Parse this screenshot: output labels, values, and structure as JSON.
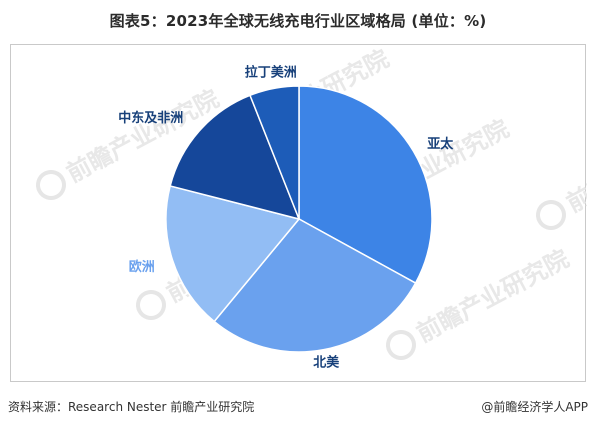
{
  "title": "图表5：2023年全球无线充电行业区域格局 (单位：%)",
  "chart_data": {
    "type": "pie",
    "title": "图表5：2023年全球无线充电行业区域格局 (单位：%)",
    "labels": [
      "亚太",
      "北美",
      "欧洲",
      "中东及非洲",
      "拉丁美洲"
    ],
    "values": [
      33,
      28,
      18,
      15,
      6
    ],
    "colors": [
      "#3d84e6",
      "#6aa1ee",
      "#92bdf4",
      "#15479a",
      "#1d5cb8"
    ],
    "label_colors": [
      "#17407a",
      "#17407a",
      "#6aa1ee",
      "#17407a",
      "#17407a"
    ],
    "start": "12 o'clock",
    "direction": "clockwise"
  },
  "watermark": {
    "brand": "前瞻产业研究院",
    "icon": "qianzhan-logo-icon"
  },
  "footer": {
    "source": "资料来源：Research Nester 前瞻产业研究院",
    "brand": "@前瞻经济学人APP"
  }
}
